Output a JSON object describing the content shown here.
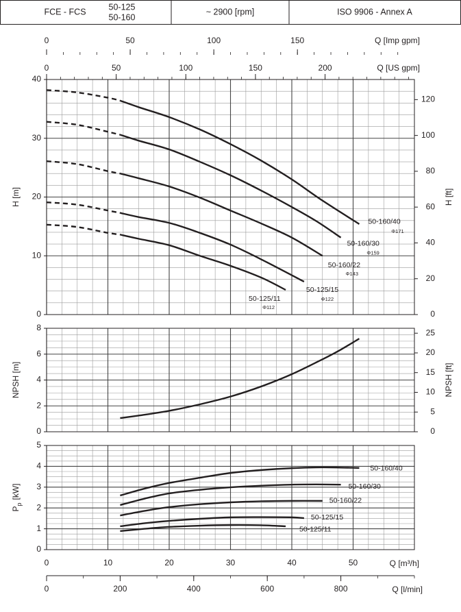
{
  "header": {
    "series_name": "FCE - FCS",
    "models": [
      "50-125",
      "50-160"
    ],
    "speed": "~ 2900 [rpm]",
    "standard": "ISO 9906 - Annex A"
  },
  "chart_data": [
    {
      "type": "line",
      "color": "#231f20",
      "y_label": "H [m]",
      "y2_label": "H [ft]",
      "grid": true,
      "xlim": [
        0,
        60
      ],
      "xticks": [
        0,
        10,
        20,
        30,
        40,
        50
      ],
      "x_minor_step": 2.5,
      "ylim": [
        0,
        40
      ],
      "yticks": [
        0,
        10,
        20,
        30,
        40
      ],
      "y_minor_step": 2,
      "y2lim": [
        0,
        131.23
      ],
      "y2ticks": [
        0,
        20,
        40,
        60,
        80,
        100,
        120
      ],
      "x_top_axes": [
        {
          "label": "Q [Imp gpm]",
          "xlim": [
            0,
            219.96
          ],
          "xticks": [
            0,
            50,
            100,
            150
          ],
          "minor_step": 10
        },
        {
          "label": "Q [US gpm]",
          "xlim": [
            0,
            264.17
          ],
          "xticks": [
            0,
            50,
            100,
            150,
            200
          ],
          "minor_step": 10
        }
      ],
      "series": [
        {
          "name": "50-160/40",
          "diameter": "Φ171",
          "dash_until": 12,
          "x": [
            0,
            5,
            10,
            12,
            15,
            20,
            25,
            30,
            35,
            40,
            45,
            51
          ],
          "values": [
            38.2,
            37.8,
            36.9,
            36.4,
            35.3,
            33.6,
            31.5,
            29.0,
            26.2,
            23.0,
            19.4,
            15.4
          ]
        },
        {
          "name": "50-160/30",
          "diameter": "Φ159",
          "dash_until": 12,
          "x": [
            0,
            5,
            10,
            12,
            15,
            20,
            25,
            30,
            35,
            40,
            44,
            48
          ],
          "values": [
            32.8,
            32.3,
            31.1,
            30.6,
            29.6,
            28.1,
            26.0,
            23.7,
            21.1,
            18.3,
            15.9,
            13.1
          ]
        },
        {
          "name": "50-160/22",
          "diameter": "Φ143",
          "dash_until": 12,
          "x": [
            0,
            5,
            10,
            12,
            15,
            20,
            25,
            30,
            35,
            40,
            45
          ],
          "values": [
            26.1,
            25.6,
            24.4,
            24.0,
            23.2,
            21.8,
            19.9,
            17.7,
            15.5,
            13.1,
            10.0
          ]
        },
        {
          "name": "50-125/15",
          "diameter": "Φ122",
          "dash_until": 12,
          "x": [
            0,
            5,
            10,
            12,
            15,
            20,
            25,
            30,
            35,
            42
          ],
          "values": [
            19.1,
            18.7,
            17.7,
            17.3,
            16.6,
            15.6,
            13.9,
            11.9,
            9.4,
            5.6
          ]
        },
        {
          "name": "50-125/11",
          "diameter": "Φ112",
          "dash_until": 12,
          "x": [
            0,
            5,
            10,
            12,
            15,
            20,
            25,
            30,
            35,
            39
          ],
          "values": [
            15.3,
            14.9,
            13.9,
            13.6,
            12.9,
            11.8,
            10.0,
            8.3,
            6.3,
            4.2
          ]
        }
      ]
    },
    {
      "type": "line",
      "color": "#231f20",
      "y_label": "NPSH [m]",
      "y2_label": "NPSH [ft]",
      "grid": true,
      "xlim": [
        0,
        60
      ],
      "xticks": [
        0,
        10,
        20,
        30,
        40,
        50
      ],
      "x_minor_step": 2.5,
      "ylim": [
        0,
        8
      ],
      "yticks": [
        0,
        2,
        4,
        6,
        8
      ],
      "y_minor_step": 0.5,
      "y2lim": [
        0,
        26.25
      ],
      "y2ticks": [
        0,
        5,
        10,
        15,
        20,
        25
      ],
      "series": [
        {
          "x": [
            12,
            15,
            20,
            25,
            30,
            35,
            40,
            45,
            48,
            51
          ],
          "values": [
            1.06,
            1.25,
            1.62,
            2.12,
            2.72,
            3.5,
            4.45,
            5.6,
            6.35,
            7.2
          ]
        }
      ]
    },
    {
      "type": "line",
      "color": "#231f20",
      "y_label": {
        "main": "P",
        "sub": "p",
        "unit": "[kW]"
      },
      "grid": true,
      "xlim": [
        0,
        60
      ],
      "xticks": [
        0,
        10,
        20,
        30,
        40,
        50
      ],
      "x_minor_step": 2.5,
      "x_label": "Q [m³/h]",
      "ylim": [
        0,
        5
      ],
      "yticks": [
        0,
        1,
        2,
        3,
        4,
        5
      ],
      "y_minor_step": 0.25,
      "x_bottom_axes": [
        {
          "label": "Q [l/min]",
          "xlim": [
            0,
            1000
          ],
          "xticks": [
            0,
            200,
            400,
            600,
            800
          ],
          "minor_step": 100
        }
      ],
      "series": [
        {
          "name": "50-160/40",
          "x": [
            12,
            16,
            20,
            25,
            30,
            35,
            40,
            45,
            51
          ],
          "values": [
            2.6,
            2.93,
            3.2,
            3.45,
            3.68,
            3.82,
            3.91,
            3.95,
            3.92
          ]
        },
        {
          "name": "50-160/30",
          "x": [
            12,
            16,
            20,
            25,
            30,
            35,
            40,
            44,
            48
          ],
          "values": [
            2.14,
            2.45,
            2.7,
            2.87,
            2.99,
            3.07,
            3.12,
            3.13,
            3.12
          ]
        },
        {
          "name": "50-160/22",
          "x": [
            12,
            16,
            20,
            25,
            30,
            35,
            40,
            45
          ],
          "values": [
            1.64,
            1.86,
            2.04,
            2.18,
            2.27,
            2.32,
            2.34,
            2.34
          ]
        },
        {
          "name": "50-125/15",
          "x": [
            12,
            16,
            20,
            25,
            30,
            35,
            40,
            42
          ],
          "values": [
            1.12,
            1.27,
            1.38,
            1.48,
            1.55,
            1.56,
            1.55,
            1.51
          ]
        },
        {
          "name": "50-125/11",
          "x": [
            12,
            16,
            20,
            25,
            30,
            35,
            39
          ],
          "values": [
            0.89,
            1.0,
            1.09,
            1.15,
            1.18,
            1.17,
            1.12
          ]
        }
      ]
    }
  ]
}
